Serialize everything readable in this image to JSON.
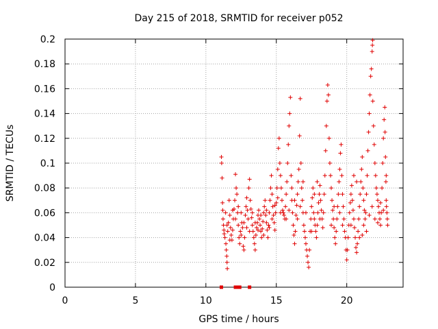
{
  "chart_data": {
    "type": "scatter",
    "title": "Day 215 of 2018, SRMTID for receiver p052",
    "xlabel": "GPS time / hours",
    "ylabel": "SRMTID / TECUs",
    "xlim": [
      0,
      24
    ],
    "ylim": [
      0,
      0.2
    ],
    "x_ticks": [
      0,
      5,
      10,
      15,
      20
    ],
    "x_tick_labels": [
      "0",
      "5",
      "10",
      "15",
      "20"
    ],
    "y_ticks": [
      0,
      0.02,
      0.04,
      0.06,
      0.08,
      0.1,
      0.12,
      0.14,
      0.16,
      0.18,
      0.2
    ],
    "y_tick_labels": [
      "0",
      "0.02",
      "0.04",
      "0.06",
      "0.08",
      "0.1",
      "0.12",
      "0.14",
      "0.16",
      "0.18",
      "0.2"
    ],
    "grid": true,
    "marker": "+",
    "color": "#e00000",
    "zero_markers_x": [
      11.1,
      12.1,
      12.2,
      12.3,
      12.4,
      13.1
    ],
    "series": [
      {
        "name": "SRMTID",
        "points": [
          [
            11.1,
            0.105
          ],
          [
            11.12,
            0.1
          ],
          [
            11.15,
            0.088
          ],
          [
            11.18,
            0.068
          ],
          [
            11.2,
            0.062
          ],
          [
            11.22,
            0.055
          ],
          [
            11.25,
            0.05
          ],
          [
            11.28,
            0.046
          ],
          [
            11.3,
            0.043
          ],
          [
            11.35,
            0.04
          ],
          [
            11.4,
            0.06
          ],
          [
            11.42,
            0.035
          ],
          [
            11.45,
            0.03
          ],
          [
            11.48,
            0.025
          ],
          [
            11.5,
            0.02
          ],
          [
            11.52,
            0.015
          ],
          [
            11.55,
            0.045
          ],
          [
            11.6,
            0.052
          ],
          [
            11.65,
            0.07
          ],
          [
            11.7,
            0.058
          ],
          [
            11.75,
            0.048
          ],
          [
            11.8,
            0.042
          ],
          [
            11.85,
            0.038
          ],
          [
            11.9,
            0.046
          ],
          [
            11.95,
            0.055
          ],
          [
            12.0,
            0.063
          ],
          [
            12.05,
            0.07
          ],
          [
            12.1,
            0.091
          ],
          [
            12.15,
            0.08
          ],
          [
            12.2,
            0.075
          ],
          [
            12.25,
            0.06
          ],
          [
            12.3,
            0.05
          ],
          [
            12.35,
            0.04
          ],
          [
            12.4,
            0.035
          ],
          [
            12.45,
            0.045
          ],
          [
            12.5,
            0.06
          ],
          [
            12.55,
            0.052
          ],
          [
            12.6,
            0.048
          ],
          [
            12.65,
            0.033
          ],
          [
            12.7,
            0.03
          ],
          [
            12.75,
            0.04
          ],
          [
            12.8,
            0.058
          ],
          [
            12.85,
            0.065
          ],
          [
            12.9,
            0.072
          ],
          [
            12.95,
            0.062
          ],
          [
            13.0,
            0.055
          ],
          [
            13.05,
            0.08
          ],
          [
            13.1,
            0.087
          ],
          [
            13.15,
            0.07
          ],
          [
            13.2,
            0.063
          ],
          [
            13.25,
            0.056
          ],
          [
            13.3,
            0.05
          ],
          [
            13.35,
            0.045
          ],
          [
            13.4,
            0.04
          ],
          [
            13.45,
            0.035
          ],
          [
            13.5,
            0.03
          ],
          [
            13.55,
            0.042
          ],
          [
            13.6,
            0.048
          ],
          [
            13.65,
            0.052
          ],
          [
            13.7,
            0.058
          ],
          [
            13.75,
            0.062
          ],
          [
            13.8,
            0.055
          ],
          [
            13.85,
            0.05
          ],
          [
            13.9,
            0.045
          ],
          [
            13.95,
            0.04
          ],
          [
            14.0,
            0.047
          ],
          [
            14.05,
            0.053
          ],
          [
            14.1,
            0.06
          ],
          [
            14.15,
            0.065
          ],
          [
            14.2,
            0.07
          ],
          [
            14.25,
            0.058
          ],
          [
            14.3,
            0.052
          ],
          [
            14.35,
            0.046
          ],
          [
            14.4,
            0.04
          ],
          [
            14.45,
            0.05
          ],
          [
            14.5,
            0.06
          ],
          [
            14.55,
            0.07
          ],
          [
            14.6,
            0.08
          ],
          [
            14.65,
            0.09
          ],
          [
            14.7,
            0.075
          ],
          [
            14.75,
            0.065
          ],
          [
            14.8,
            0.058
          ],
          [
            14.85,
            0.052
          ],
          [
            14.9,
            0.046
          ],
          [
            14.95,
            0.06
          ],
          [
            15.0,
            0.068
          ],
          [
            15.05,
            0.08
          ],
          [
            15.1,
            0.095
          ],
          [
            15.15,
            0.112
          ],
          [
            15.2,
            0.12
          ],
          [
            15.25,
            0.1
          ],
          [
            15.3,
            0.09
          ],
          [
            15.35,
            0.08
          ],
          [
            15.4,
            0.07
          ],
          [
            15.45,
            0.062
          ],
          [
            15.5,
            0.06
          ],
          [
            15.55,
            0.058
          ],
          [
            15.6,
            0.055
          ],
          [
            15.65,
            0.065
          ],
          [
            15.7,
            0.075
          ],
          [
            15.75,
            0.085
          ],
          [
            15.8,
            0.1
          ],
          [
            15.85,
            0.115
          ],
          [
            15.9,
            0.13
          ],
          [
            15.95,
            0.14
          ],
          [
            16.0,
            0.153
          ],
          [
            16.05,
            0.09
          ],
          [
            16.1,
            0.07
          ],
          [
            16.15,
            0.06
          ],
          [
            16.2,
            0.05
          ],
          [
            16.25,
            0.042
          ],
          [
            16.3,
            0.035
          ],
          [
            16.35,
            0.045
          ],
          [
            16.4,
            0.058
          ],
          [
            16.45,
            0.066
          ],
          [
            16.5,
            0.075
          ],
          [
            16.55,
            0.085
          ],
          [
            16.6,
            0.095
          ],
          [
            16.65,
            0.122
          ],
          [
            16.7,
            0.152
          ],
          [
            16.75,
            0.1
          ],
          [
            16.8,
            0.08
          ],
          [
            16.85,
            0.07
          ],
          [
            16.9,
            0.06
          ],
          [
            16.95,
            0.05
          ],
          [
            17.0,
            0.045
          ],
          [
            17.05,
            0.04
          ],
          [
            17.1,
            0.035
          ],
          [
            17.15,
            0.03
          ],
          [
            17.2,
            0.025
          ],
          [
            17.25,
            0.02
          ],
          [
            17.3,
            0.016
          ],
          [
            17.35,
            0.03
          ],
          [
            17.4,
            0.045
          ],
          [
            17.45,
            0.055
          ],
          [
            17.5,
            0.065
          ],
          [
            17.55,
            0.072
          ],
          [
            17.6,
            0.08
          ],
          [
            17.65,
            0.06
          ],
          [
            17.7,
            0.055
          ],
          [
            17.75,
            0.05
          ],
          [
            17.8,
            0.045
          ],
          [
            17.85,
            0.04
          ],
          [
            17.9,
            0.05
          ],
          [
            17.95,
            0.06
          ],
          [
            18.0,
            0.068
          ],
          [
            18.05,
            0.075
          ],
          [
            18.1,
            0.082
          ],
          [
            18.15,
            0.07
          ],
          [
            18.2,
            0.062
          ],
          [
            18.25,
            0.055
          ],
          [
            18.3,
            0.048
          ],
          [
            18.35,
            0.06
          ],
          [
            18.4,
            0.075
          ],
          [
            18.45,
            0.09
          ],
          [
            18.5,
            0.11
          ],
          [
            18.55,
            0.13
          ],
          [
            18.6,
            0.15
          ],
          [
            18.65,
            0.163
          ],
          [
            18.7,
            0.155
          ],
          [
            18.75,
            0.12
          ],
          [
            18.8,
            0.1
          ],
          [
            18.85,
            0.09
          ],
          [
            18.9,
            0.08
          ],
          [
            18.95,
            0.07
          ],
          [
            19.0,
            0.062
          ],
          [
            19.05,
            0.055
          ],
          [
            19.1,
            0.048
          ],
          [
            19.15,
            0.04
          ],
          [
            19.2,
            0.035
          ],
          [
            19.25,
            0.045
          ],
          [
            19.3,
            0.055
          ],
          [
            19.35,
            0.065
          ],
          [
            19.4,
            0.075
          ],
          [
            19.45,
            0.085
          ],
          [
            19.5,
            0.095
          ],
          [
            19.55,
            0.108
          ],
          [
            19.6,
            0.115
          ],
          [
            19.65,
            0.09
          ],
          [
            19.7,
            0.075
          ],
          [
            19.75,
            0.065
          ],
          [
            19.8,
            0.055
          ],
          [
            19.85,
            0.045
          ],
          [
            19.9,
            0.04
          ],
          [
            19.95,
            0.03
          ],
          [
            20.0,
            0.022
          ],
          [
            20.05,
            0.03
          ],
          [
            20.1,
            0.04
          ],
          [
            20.15,
            0.05
          ],
          [
            20.2,
            0.06
          ],
          [
            20.25,
            0.068
          ],
          [
            20.3,
            0.075
          ],
          [
            20.35,
            0.082
          ],
          [
            20.4,
            0.07
          ],
          [
            20.45,
            0.062
          ],
          [
            20.5,
            0.055
          ],
          [
            20.55,
            0.048
          ],
          [
            20.6,
            0.04
          ],
          [
            20.65,
            0.032
          ],
          [
            20.7,
            0.028
          ],
          [
            20.75,
            0.035
          ],
          [
            20.8,
            0.045
          ],
          [
            20.85,
            0.055
          ],
          [
            20.9,
            0.065
          ],
          [
            20.95,
            0.075
          ],
          [
            21.0,
            0.085
          ],
          [
            21.05,
            0.095
          ],
          [
            21.1,
            0.105
          ],
          [
            21.15,
            0.08
          ],
          [
            21.2,
            0.07
          ],
          [
            21.25,
            0.062
          ],
          [
            21.3,
            0.055
          ],
          [
            21.35,
            0.06
          ],
          [
            21.4,
            0.075
          ],
          [
            21.45,
            0.09
          ],
          [
            21.5,
            0.11
          ],
          [
            21.55,
            0.125
          ],
          [
            21.6,
            0.14
          ],
          [
            21.65,
            0.155
          ],
          [
            21.7,
            0.17
          ],
          [
            21.75,
            0.176
          ],
          [
            21.8,
            0.19
          ],
          [
            21.82,
            0.195
          ],
          [
            21.84,
            0.199
          ],
          [
            21.85,
            0.15
          ],
          [
            21.9,
            0.13
          ],
          [
            21.95,
            0.115
          ],
          [
            22.0,
            0.1
          ],
          [
            22.05,
            0.09
          ],
          [
            22.1,
            0.08
          ],
          [
            22.15,
            0.075
          ],
          [
            22.2,
            0.07
          ],
          [
            22.25,
            0.065
          ],
          [
            22.3,
            0.06
          ],
          [
            22.35,
            0.055
          ],
          [
            22.4,
            0.05
          ],
          [
            22.45,
            0.06
          ],
          [
            22.5,
            0.08
          ],
          [
            22.55,
            0.1
          ],
          [
            22.6,
            0.12
          ],
          [
            22.65,
            0.135
          ],
          [
            22.7,
            0.145
          ],
          [
            22.72,
            0.125
          ],
          [
            22.75,
            0.105
          ],
          [
            22.78,
            0.085
          ],
          [
            22.8,
            0.07
          ],
          [
            22.82,
            0.065
          ],
          [
            22.85,
            0.06
          ],
          [
            22.88,
            0.055
          ],
          [
            22.9,
            0.05
          ],
          [
            21.2,
            0.05
          ],
          [
            21.4,
            0.045
          ],
          [
            21.6,
            0.058
          ],
          [
            21.8,
            0.065
          ],
          [
            22.0,
            0.055
          ],
          [
            22.2,
            0.052
          ],
          [
            22.4,
            0.068
          ],
          [
            22.6,
            0.062
          ],
          [
            22.8,
            0.09
          ],
          [
            21.1,
            0.042
          ],
          [
            20.5,
            0.09
          ],
          [
            20.7,
            0.085
          ],
          [
            20.9,
            0.04
          ],
          [
            20.3,
            0.05
          ],
          [
            19.5,
            0.06
          ],
          [
            19.7,
            0.05
          ],
          [
            19.1,
            0.065
          ],
          [
            18.9,
            0.05
          ],
          [
            18.1,
            0.055
          ],
          [
            17.9,
            0.085
          ],
          [
            17.7,
            0.075
          ],
          [
            17.5,
            0.045
          ],
          [
            17.1,
            0.06
          ],
          [
            16.9,
            0.085
          ],
          [
            16.7,
            0.065
          ],
          [
            16.5,
            0.055
          ],
          [
            16.3,
            0.07
          ],
          [
            16.1,
            0.08
          ],
          [
            15.9,
            0.062
          ],
          [
            15.7,
            0.055
          ],
          [
            15.3,
            0.06
          ],
          [
            15.1,
            0.072
          ],
          [
            14.9,
            0.066
          ],
          [
            14.7,
            0.055
          ],
          [
            14.5,
            0.048
          ],
          [
            14.3,
            0.062
          ],
          [
            14.1,
            0.042
          ],
          [
            13.9,
            0.058
          ],
          [
            13.7,
            0.046
          ],
          [
            13.5,
            0.052
          ],
          [
            13.3,
            0.06
          ],
          [
            13.1,
            0.045
          ],
          [
            12.9,
            0.048
          ],
          [
            12.7,
            0.052
          ],
          [
            12.5,
            0.042
          ],
          [
            12.3,
            0.065
          ],
          [
            12.1,
            0.055
          ],
          [
            11.9,
            0.062
          ],
          [
            11.7,
            0.038
          ],
          [
            11.5,
            0.05
          ]
        ]
      }
    ]
  }
}
